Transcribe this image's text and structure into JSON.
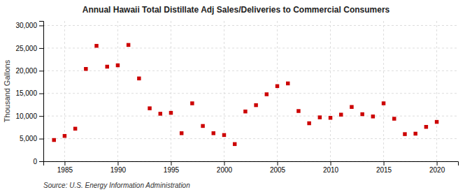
{
  "chart_data": {
    "type": "scatter",
    "title": "Annual Hawaii Total Distillate Adj Sales/Deliveries to Commercial Consumers",
    "ylabel": "Thousand Gallons",
    "source": "Source: U.S. Energy Information Administration",
    "color": "#cc0000",
    "marker": "square",
    "grid": true,
    "xlim": [
      1983,
      2022
    ],
    "ylim": [
      0,
      31000
    ],
    "xticks": [
      1985,
      1990,
      1995,
      2000,
      2005,
      2010,
      2015,
      2020
    ],
    "yticks": [
      0,
      {
        "value": 5000,
        "label": "5,000"
      },
      {
        "value": 10000,
        "label": "10,000"
      },
      {
        "value": 15000,
        "label": "15,000"
      },
      {
        "value": 20000,
        "label": "20,000"
      },
      {
        "value": 25000,
        "label": "25,000"
      },
      {
        "value": 30000,
        "label": "30,000"
      }
    ],
    "x": [
      1984,
      1985,
      1986,
      1987,
      1988,
      1989,
      1990,
      1991,
      1992,
      1993,
      1994,
      1995,
      1996,
      1997,
      1998,
      1999,
      2000,
      2001,
      2002,
      2003,
      2004,
      2005,
      2006,
      2007,
      2008,
      2009,
      2010,
      2011,
      2012,
      2013,
      2014,
      2015,
      2016,
      2017,
      2018,
      2019,
      2020
    ],
    "values": [
      4700,
      5600,
      7200,
      20400,
      25500,
      20900,
      21200,
      25700,
      18300,
      11700,
      10500,
      10700,
      6200,
      12800,
      7800,
      6200,
      5800,
      3800,
      11000,
      12400,
      14800,
      16600,
      17200,
      11100,
      8400,
      9700,
      9600,
      10300,
      12000,
      10400,
      9900,
      12800,
      9400,
      6000,
      6100,
      7600,
      8700
    ]
  }
}
